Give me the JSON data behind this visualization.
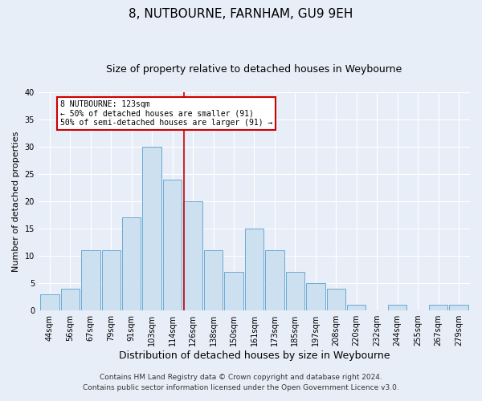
{
  "title": "8, NUTBOURNE, FARNHAM, GU9 9EH",
  "subtitle": "Size of property relative to detached houses in Weybourne",
  "xlabel": "Distribution of detached houses by size in Weybourne",
  "ylabel": "Number of detached properties",
  "bar_labels": [
    "44sqm",
    "56sqm",
    "67sqm",
    "79sqm",
    "91sqm",
    "103sqm",
    "114sqm",
    "126sqm",
    "138sqm",
    "150sqm",
    "161sqm",
    "173sqm",
    "185sqm",
    "197sqm",
    "208sqm",
    "220sqm",
    "232sqm",
    "244sqm",
    "255sqm",
    "267sqm",
    "279sqm"
  ],
  "bar_values": [
    3,
    4,
    11,
    11,
    17,
    30,
    24,
    20,
    11,
    7,
    15,
    11,
    7,
    5,
    4,
    1,
    0,
    1,
    0,
    1,
    1
  ],
  "bar_color": "#cde0f0",
  "bar_edge_color": "#6aaad4",
  "ylim": [
    0,
    40
  ],
  "yticks": [
    0,
    5,
    10,
    15,
    20,
    25,
    30,
    35,
    40
  ],
  "vline_x_index": 6.57,
  "vline_color": "#cc0000",
  "annotation_title": "8 NUTBOURNE: 123sqm",
  "annotation_line1": "← 50% of detached houses are smaller (91)",
  "annotation_line2": "50% of semi-detached houses are larger (91) →",
  "annotation_box_facecolor": "#ffffff",
  "annotation_box_edgecolor": "#cc0000",
  "footnote1": "Contains HM Land Registry data © Crown copyright and database right 2024.",
  "footnote2": "Contains public sector information licensed under the Open Government Licence v3.0.",
  "fig_facecolor": "#e8eef8",
  "plot_facecolor": "#e8eef8",
  "grid_color": "#ffffff",
  "title_fontsize": 11,
  "subtitle_fontsize": 9,
  "xlabel_fontsize": 9,
  "ylabel_fontsize": 8,
  "tick_fontsize": 7,
  "annotation_fontsize": 7,
  "footnote_fontsize": 6.5
}
